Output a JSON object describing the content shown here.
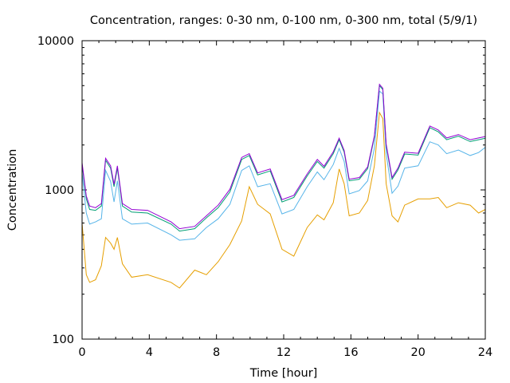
{
  "chart_data": {
    "type": "line",
    "title": "Concentration, ranges: 0-30 nm, 0-100 nm, 0-300 nm, total (5/9/1)",
    "xlabel": "Time [hour]",
    "ylabel": "Concentration",
    "xlim": [
      0,
      24
    ],
    "ylim": [
      100,
      10000
    ],
    "yscale": "log",
    "grid": false,
    "legend": "none",
    "x_ticks": [
      0,
      4,
      8,
      12,
      16,
      20,
      24
    ],
    "x_tick_labels": [
      "0",
      "4",
      "8",
      "12",
      "16",
      "20",
      "24"
    ],
    "y_ticks": [
      100,
      1000,
      10000
    ],
    "y_tick_labels": [
      "100",
      "1000",
      "10000"
    ],
    "x": [
      0,
      0.25,
      0.45,
      0.8,
      1.15,
      1.4,
      1.7,
      1.9,
      2.1,
      2.4,
      2.95,
      3.9,
      5.3,
      5.8,
      6.7,
      7.4,
      8.1,
      8.8,
      9.5,
      9.95,
      10.45,
      11.2,
      11.9,
      12.6,
      13.4,
      14.0,
      14.4,
      14.95,
      15.3,
      15.6,
      15.9,
      16.5,
      17.0,
      17.4,
      17.7,
      17.9,
      18.1,
      18.45,
      18.8,
      19.2,
      20.0,
      20.7,
      21.2,
      21.7,
      22.4,
      23.1,
      23.6,
      24.0
    ],
    "series": [
      {
        "name": "total",
        "color": "#9400d3",
        "values": [
          1520,
          910,
          780,
          760,
          810,
          1630,
          1450,
          1090,
          1450,
          810,
          740,
          730,
          610,
          550,
          570,
          670,
          790,
          1010,
          1650,
          1750,
          1300,
          1380,
          860,
          920,
          1280,
          1600,
          1440,
          1800,
          2220,
          1840,
          1180,
          1210,
          1430,
          2300,
          5100,
          4800,
          2030,
          1210,
          1400,
          1790,
          1760,
          2680,
          2520,
          2230,
          2350,
          2170,
          2230,
          2280
        ]
      },
      {
        "name": "0-300 nm",
        "color": "#009e73",
        "values": [
          1480,
          870,
          740,
          730,
          780,
          1580,
          1400,
          1050,
          1400,
          780,
          710,
          700,
          590,
          530,
          550,
          650,
          760,
          970,
          1600,
          1700,
          1260,
          1340,
          830,
          890,
          1240,
          1550,
          1400,
          1750,
          2170,
          1790,
          1150,
          1180,
          1390,
          2250,
          5000,
          4700,
          1980,
          1180,
          1360,
          1740,
          1710,
          2610,
          2450,
          2170,
          2290,
          2110,
          2170,
          2220
        ]
      },
      {
        "name": "0-100 nm",
        "color": "#56b4e9",
        "values": [
          1300,
          700,
          590,
          610,
          640,
          1350,
          1140,
          830,
          1150,
          640,
          590,
          600,
          500,
          460,
          470,
          560,
          640,
          800,
          1350,
          1450,
          1050,
          1100,
          690,
          740,
          1050,
          1320,
          1170,
          1480,
          1900,
          1550,
          940,
          990,
          1150,
          1900,
          4600,
          4400,
          1750,
          950,
          1060,
          1400,
          1450,
          2100,
          2000,
          1750,
          1850,
          1700,
          1780,
          1930
        ]
      },
      {
        "name": "0-30 nm",
        "color": "#e69f00",
        "values": [
          600,
          270,
          240,
          250,
          310,
          480,
          440,
          400,
          480,
          320,
          260,
          270,
          240,
          220,
          290,
          270,
          330,
          430,
          620,
          1050,
          800,
          690,
          400,
          360,
          560,
          680,
          630,
          820,
          1380,
          1100,
          670,
          700,
          850,
          1450,
          3300,
          3000,
          1100,
          670,
          610,
          790,
          870,
          870,
          890,
          760,
          820,
          790,
          700,
          740
        ]
      }
    ]
  }
}
